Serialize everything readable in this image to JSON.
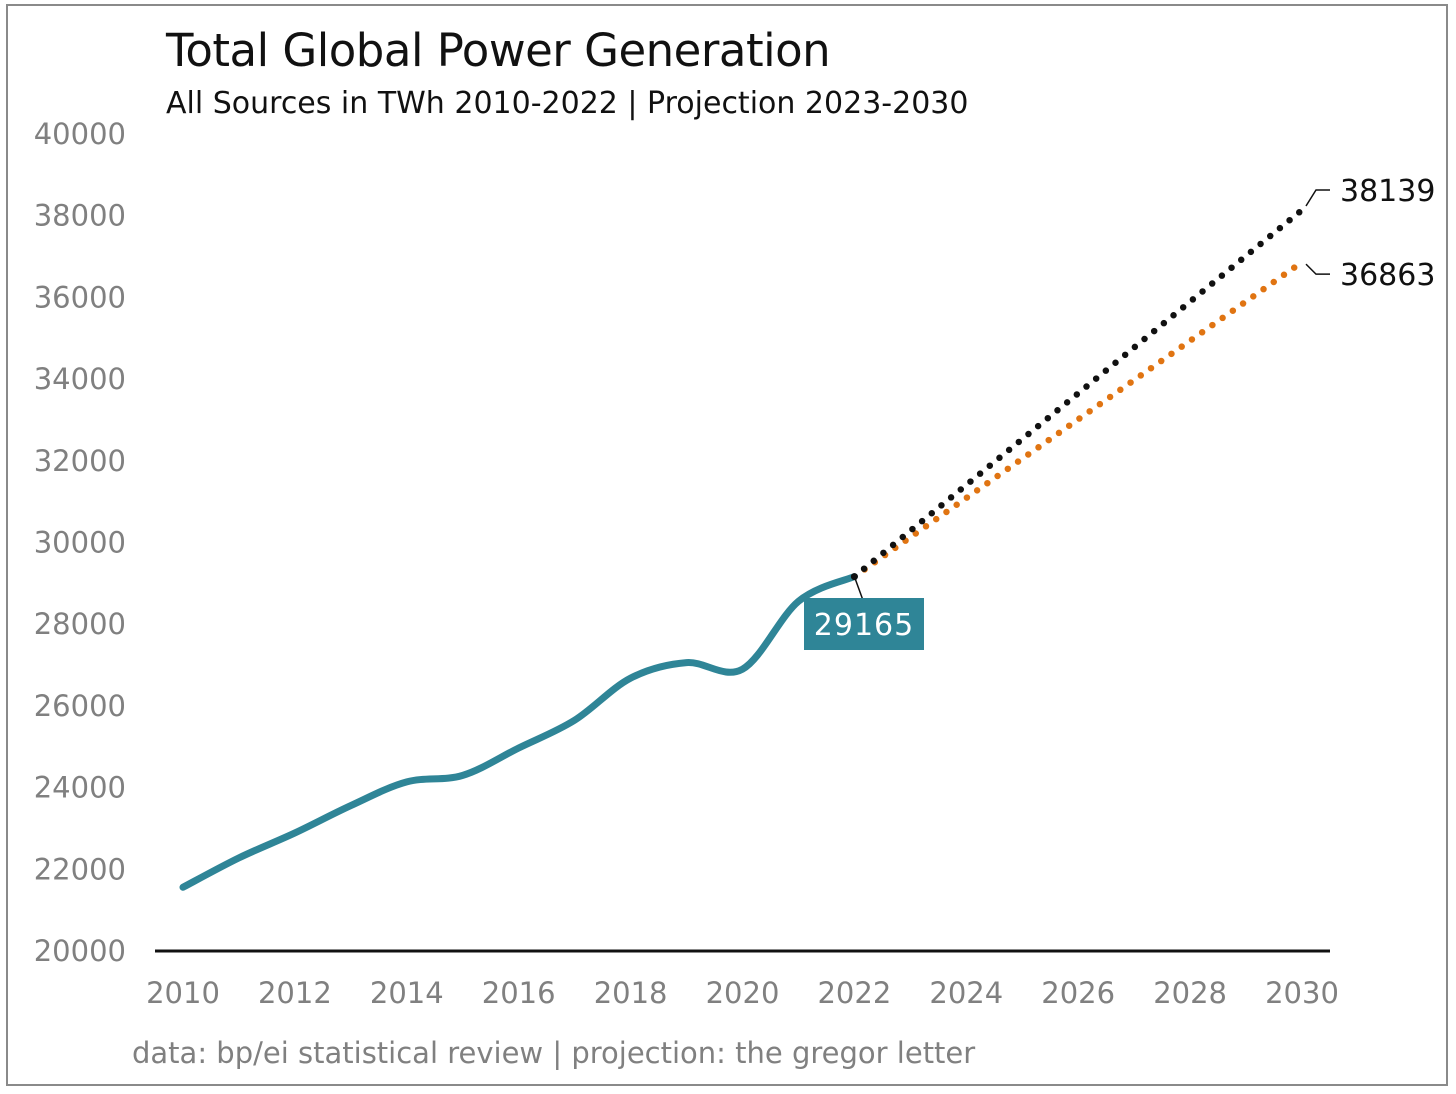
{
  "chart_data": {
    "type": "line",
    "title": "Total Global Power Generation",
    "subtitle": "All Sources in TWh 2010-2022 | Projection 2023-2030",
    "source": "data: bp/ei statistical review | projection: the gregor letter",
    "xlabel": "",
    "ylabel": "",
    "xlim": [
      2010,
      2030
    ],
    "ylim": [
      20000,
      40000
    ],
    "x_ticks": [
      "2010",
      "2012",
      "2014",
      "2016",
      "2018",
      "2020",
      "2022",
      "2024",
      "2026",
      "2028",
      "2030"
    ],
    "y_ticks": [
      "20000",
      "22000",
      "24000",
      "26000",
      "28000",
      "30000",
      "32000",
      "34000",
      "36000",
      "38000",
      "40000"
    ],
    "grid": false,
    "series": [
      {
        "style": "solid",
        "color": "#2f8597",
        "x": [
          2010,
          2011,
          2012,
          2013,
          2014,
          2015,
          2016,
          2017,
          2018,
          2019,
          2020,
          2021,
          2022
        ],
        "values": [
          21560,
          22280,
          22890,
          23560,
          24140,
          24300,
          24970,
          25650,
          26680,
          27060,
          26900,
          28560,
          29165
        ]
      },
      {
        "style": "dotted",
        "color": "#111111",
        "x": [
          2022,
          2030
        ],
        "values": [
          29165,
          38139
        ]
      },
      {
        "style": "dotted",
        "color": "#e07412",
        "x": [
          2022,
          2030
        ],
        "values": [
          29165,
          36863
        ]
      }
    ],
    "annotations": [
      {
        "text": "29165",
        "x": 2022,
        "y": 29165,
        "style": "boxed",
        "box_color": "#2f8597"
      },
      {
        "text": "38139",
        "x": 2030,
        "y": 38139,
        "style": "leader"
      },
      {
        "text": "36863",
        "x": 2030,
        "y": 36863,
        "style": "leader"
      }
    ]
  }
}
